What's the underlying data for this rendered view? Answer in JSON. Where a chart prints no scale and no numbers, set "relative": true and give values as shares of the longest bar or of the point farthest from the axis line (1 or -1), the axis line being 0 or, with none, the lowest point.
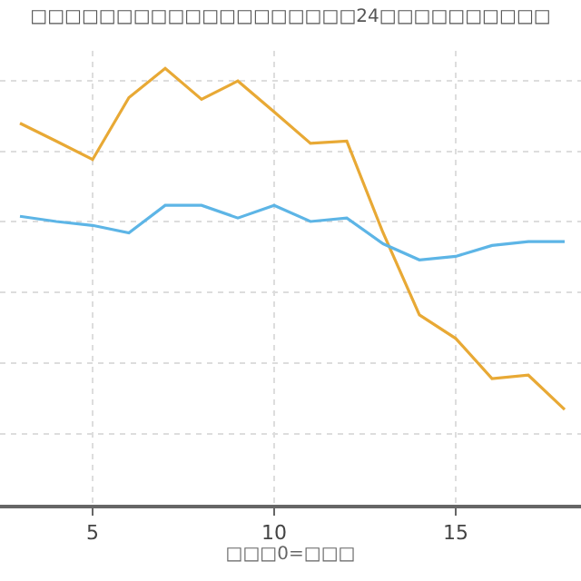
{
  "chart_data": {
    "type": "line",
    "relative": true,
    "title": "□□□□□□□□□□□□□□□□□□□24□□□□□□□□□□",
    "xlabel": "□□□0=□□□",
    "x": [
      3,
      4,
      5,
      6,
      7,
      8,
      9,
      10,
      11,
      12,
      13,
      14,
      15,
      16,
      17,
      18
    ],
    "xlim": [
      2.45,
      18.45
    ],
    "xticks": [
      5,
      10,
      15
    ],
    "grid": true,
    "marker": "none",
    "line_style": "solid",
    "series": [
      {
        "color": "#e8a935",
        "values": [
          0.874,
          0.833,
          0.791,
          0.933,
          1,
          0.929,
          0.971,
          0.9,
          0.828,
          0.833,
          0.623,
          0.435,
          0.381,
          0.289,
          0.297,
          0.218
        ]
      },
      {
        "color": "#5db5e6",
        "values": [
          0.661,
          0.649,
          0.64,
          0.623,
          0.686,
          0.686,
          0.657,
          0.686,
          0.649,
          0.657,
          0.598,
          0.561,
          0.569,
          0.594,
          0.603,
          0.603
        ]
      }
    ]
  }
}
